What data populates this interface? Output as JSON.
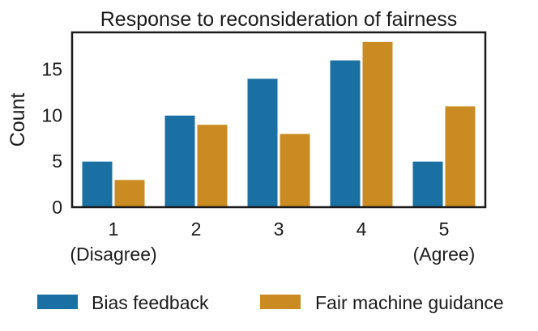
{
  "chart_data": {
    "type": "bar",
    "title": "Response to reconsideration of fairness",
    "xlabel": "",
    "ylabel": "Count",
    "categories": [
      "1",
      "2",
      "3",
      "4",
      "5"
    ],
    "category_sublabels": [
      "(Disagree)",
      "",
      "",
      "",
      "(Agree)"
    ],
    "series": [
      {
        "name": "Bias feedback",
        "values": [
          5,
          10,
          14,
          16,
          5
        ],
        "color": "#1a6fa3"
      },
      {
        "name": "Fair machine guidance",
        "values": [
          3,
          9,
          8,
          18,
          11
        ],
        "color": "#c98b22"
      }
    ],
    "yticks": [
      0,
      5,
      10,
      15
    ],
    "ylim": [
      0,
      19
    ],
    "grid": false,
    "legend_position": "bottom"
  }
}
